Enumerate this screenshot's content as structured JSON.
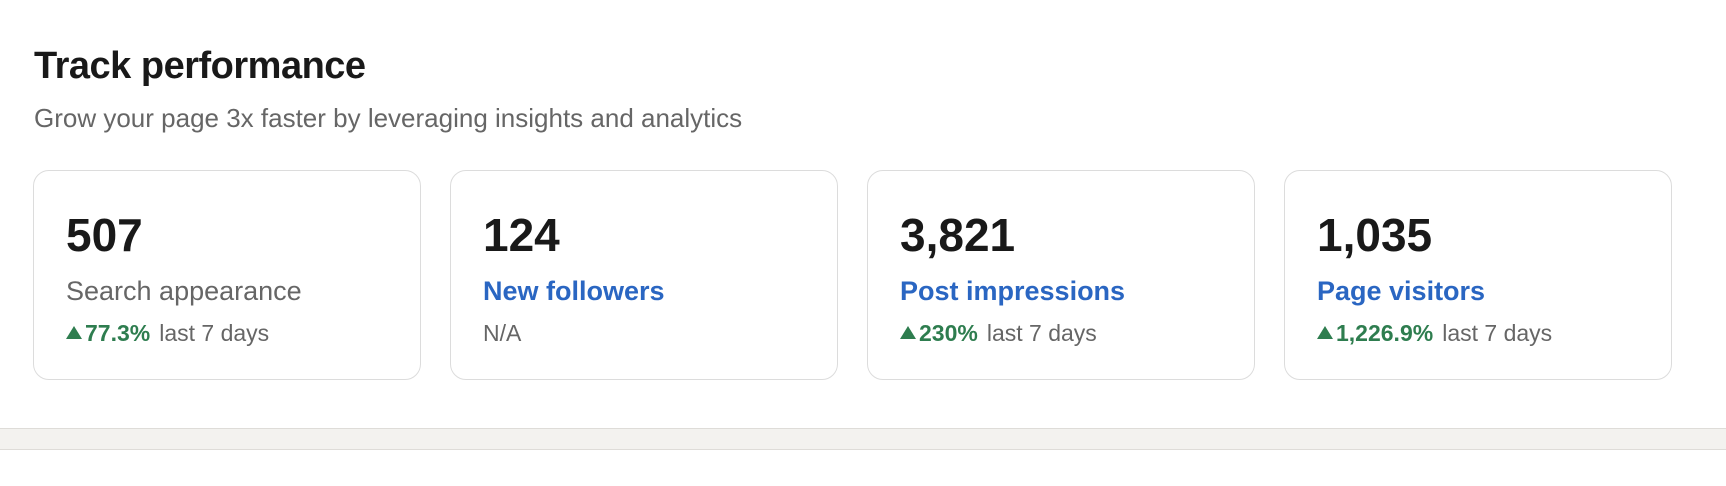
{
  "header": {
    "title": "Track performance",
    "subtitle": "Grow your page 3x faster by leveraging insights and analytics"
  },
  "cards": [
    {
      "value": "507",
      "label": "Search appearance",
      "label_is_link": false,
      "change": "77.3%",
      "period": "last 7 days"
    },
    {
      "value": "124",
      "label": "New followers",
      "label_is_link": true,
      "status": "N/A"
    },
    {
      "value": "3,821",
      "label": "Post impressions",
      "label_is_link": true,
      "change": "230%",
      "period": "last 7 days"
    },
    {
      "value": "1,035",
      "label": "Page visitors",
      "label_is_link": true,
      "change": "1,226.9%",
      "period": "last 7 days"
    }
  ],
  "colors": {
    "link": "#2a66c2",
    "positive": "#2e7d4f",
    "text_primary": "#191919",
    "text_secondary": "#666666",
    "border": "#dcdcdc",
    "page_background": "#f3f2ef"
  },
  "icons": {
    "trend": "triangle-up-icon"
  }
}
